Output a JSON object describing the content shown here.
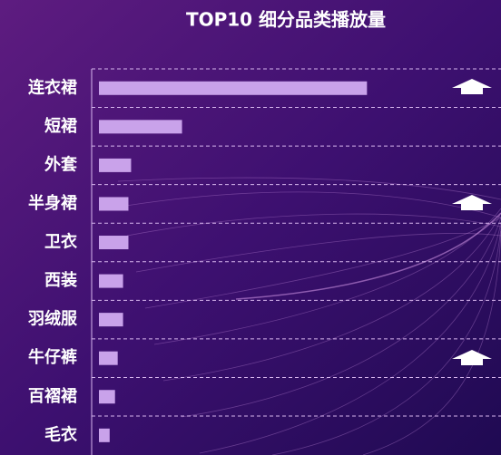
{
  "chart_data": {
    "type": "bar",
    "orientation": "horizontal",
    "title": "TOP10 细分品类播放量",
    "categories": [
      "连衣裙",
      "短裙",
      "外套",
      "半身裙",
      "卫衣",
      "西装",
      "羽绒服",
      "牛仔裤",
      "百褶裙",
      "毛衣"
    ],
    "values": [
      100,
      31,
      12,
      11,
      11,
      9,
      9,
      7,
      6,
      4
    ],
    "color": "#c9a2ea",
    "xlim": [
      0,
      150
    ]
  }
}
